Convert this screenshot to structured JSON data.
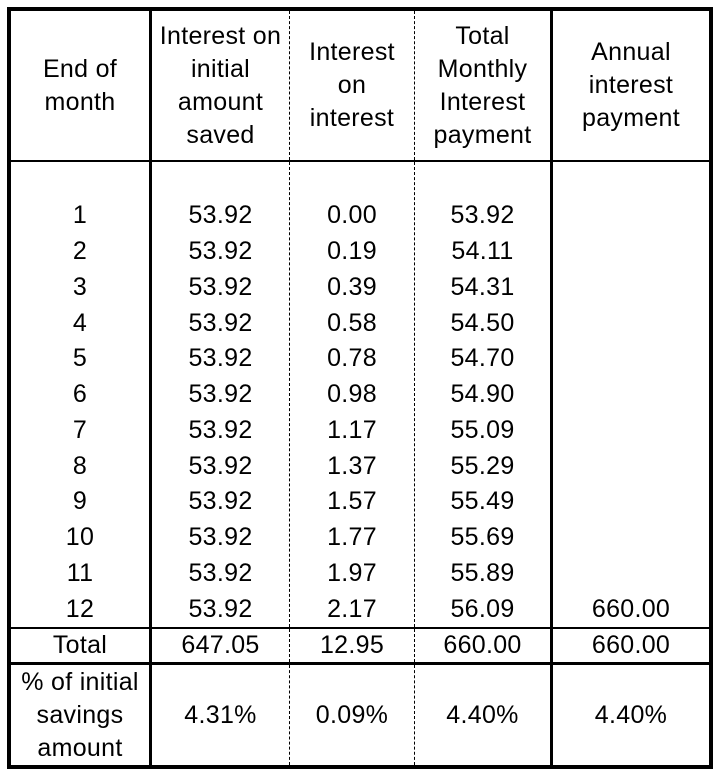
{
  "table": {
    "headers": {
      "col1": "End of\nmonth",
      "col2": "Interest on\ninitial\namount\nsaved",
      "col3": "Interest\non\ninterest",
      "col4": "Total\nMonthly\nInterest\npayment",
      "col5": "Annual\ninterest\npayment"
    },
    "rows": [
      {
        "month": "1",
        "interest_initial": "53.92",
        "interest_on_interest": "0.00",
        "total_monthly": "53.92",
        "annual": ""
      },
      {
        "month": "2",
        "interest_initial": "53.92",
        "interest_on_interest": "0.19",
        "total_monthly": "54.11",
        "annual": ""
      },
      {
        "month": "3",
        "interest_initial": "53.92",
        "interest_on_interest": "0.39",
        "total_monthly": "54.31",
        "annual": ""
      },
      {
        "month": "4",
        "interest_initial": "53.92",
        "interest_on_interest": "0.58",
        "total_monthly": "54.50",
        "annual": ""
      },
      {
        "month": "5",
        "interest_initial": "53.92",
        "interest_on_interest": "0.78",
        "total_monthly": "54.70",
        "annual": ""
      },
      {
        "month": "6",
        "interest_initial": "53.92",
        "interest_on_interest": "0.98",
        "total_monthly": "54.90",
        "annual": ""
      },
      {
        "month": "7",
        "interest_initial": "53.92",
        "interest_on_interest": "1.17",
        "total_monthly": "55.09",
        "annual": ""
      },
      {
        "month": "8",
        "interest_initial": "53.92",
        "interest_on_interest": "1.37",
        "total_monthly": "55.29",
        "annual": ""
      },
      {
        "month": "9",
        "interest_initial": "53.92",
        "interest_on_interest": "1.57",
        "total_monthly": "55.49",
        "annual": ""
      },
      {
        "month": "10",
        "interest_initial": "53.92",
        "interest_on_interest": "1.77",
        "total_monthly": "55.69",
        "annual": ""
      },
      {
        "month": "11",
        "interest_initial": "53.92",
        "interest_on_interest": "1.97",
        "total_monthly": "55.89",
        "annual": ""
      },
      {
        "month": "12",
        "interest_initial": "53.92",
        "interest_on_interest": "2.17",
        "total_monthly": "56.09",
        "annual": "660.00"
      }
    ],
    "total_row": {
      "label": "Total",
      "interest_initial": "647.05",
      "interest_on_interest": "12.95",
      "total_monthly": "660.00",
      "annual": "660.00"
    },
    "pct_row": {
      "label": "% of initial\nsavings\namount",
      "interest_initial": "4.31%",
      "interest_on_interest": "0.09%",
      "total_monthly": "4.40%",
      "annual": "4.40%"
    }
  },
  "colors": {
    "border": "#000000",
    "background": "#ffffff",
    "text": "#000000"
  },
  "chart_data": {
    "type": "table",
    "title": "Monthly interest breakdown table",
    "columns": [
      "End of month",
      "Interest on initial amount saved",
      "Interest on interest",
      "Total Monthly Interest payment",
      "Annual interest payment"
    ],
    "rows": [
      [
        1,
        53.92,
        0.0,
        53.92,
        null
      ],
      [
        2,
        53.92,
        0.19,
        54.11,
        null
      ],
      [
        3,
        53.92,
        0.39,
        54.31,
        null
      ],
      [
        4,
        53.92,
        0.58,
        54.5,
        null
      ],
      [
        5,
        53.92,
        0.78,
        54.7,
        null
      ],
      [
        6,
        53.92,
        0.98,
        54.9,
        null
      ],
      [
        7,
        53.92,
        1.17,
        55.09,
        null
      ],
      [
        8,
        53.92,
        1.37,
        55.29,
        null
      ],
      [
        9,
        53.92,
        1.57,
        55.49,
        null
      ],
      [
        10,
        53.92,
        1.77,
        55.69,
        null
      ],
      [
        11,
        53.92,
        1.97,
        55.89,
        null
      ],
      [
        12,
        53.92,
        2.17,
        56.09,
        660.0
      ]
    ],
    "total": [
      "Total",
      647.05,
      12.95,
      660.0,
      660.0
    ],
    "pct_of_initial_savings": [
      "% of initial savings amount",
      "4.31%",
      "0.09%",
      "4.40%",
      "4.40%"
    ]
  }
}
